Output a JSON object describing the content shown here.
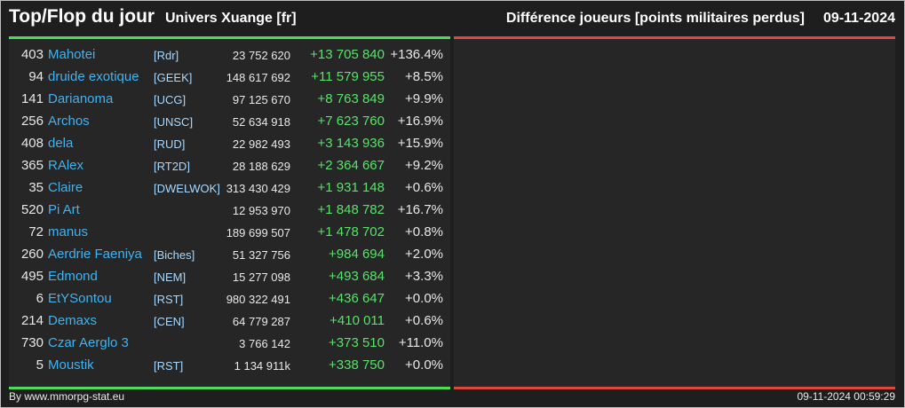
{
  "header": {
    "title": "Top/Flop du jour",
    "universe": "Univers Xuange [fr]",
    "metric": "Différence joueurs [points militaires perdus]",
    "date": "09-11-2024"
  },
  "colors": {
    "top_accent": "#4cdc5a",
    "flop_accent": "#e0463e",
    "player_name": "#3fb3f2",
    "gain": "#57e36a"
  },
  "top_rows": [
    {
      "rank": "403",
      "name": "Mahotei",
      "alliance": "[Rdr]",
      "points": "23 752 620",
      "diff": "+13 705 840",
      "pct": "+136.4%"
    },
    {
      "rank": "94",
      "name": "druide exotique",
      "alliance": "[GEEK]",
      "points": "148 617 692",
      "diff": "+11 579 955",
      "pct": "+8.5%"
    },
    {
      "rank": "141",
      "name": "Darianoma",
      "alliance": "[UCG]",
      "points": "97 125 670",
      "diff": "+8 763 849",
      "pct": "+9.9%"
    },
    {
      "rank": "256",
      "name": "Archos",
      "alliance": "[UNSC]",
      "points": "52 634 918",
      "diff": "+7 623 760",
      "pct": "+16.9%"
    },
    {
      "rank": "408",
      "name": "dela",
      "alliance": "[RUD]",
      "points": "22 982 493",
      "diff": "+3 143 936",
      "pct": "+15.9%"
    },
    {
      "rank": "365",
      "name": "RAlex",
      "alliance": "[RT2D]",
      "points": "28 188 629",
      "diff": "+2 364 667",
      "pct": "+9.2%"
    },
    {
      "rank": "35",
      "name": "Claire",
      "alliance": "[DWELWOK]",
      "points": "313 430 429",
      "diff": "+1 931 148",
      "pct": "+0.6%"
    },
    {
      "rank": "520",
      "name": "Pi Art",
      "alliance": "",
      "points": "12 953 970",
      "diff": "+1 848 782",
      "pct": "+16.7%"
    },
    {
      "rank": "72",
      "name": "manus",
      "alliance": "",
      "points": "189 699 507",
      "diff": "+1 478 702",
      "pct": "+0.8%"
    },
    {
      "rank": "260",
      "name": "Aerdrie Faeniya",
      "alliance": "[Biches]",
      "points": "51 327 756",
      "diff": "+984 694",
      "pct": "+2.0%"
    },
    {
      "rank": "495",
      "name": "Edmond",
      "alliance": "[NEM]",
      "points": "15 277 098",
      "diff": "+493 684",
      "pct": "+3.3%"
    },
    {
      "rank": "6",
      "name": "EtYSontou",
      "alliance": "[RST]",
      "points": "980 322 491",
      "diff": "+436 647",
      "pct": "+0.0%"
    },
    {
      "rank": "214",
      "name": "Demaxs",
      "alliance": "[CEN]",
      "points": "64 779 287",
      "diff": "+410 011",
      "pct": "+0.6%"
    },
    {
      "rank": "730",
      "name": "Czar Aerglo 3",
      "alliance": "",
      "points": "3 766 142",
      "diff": "+373 510",
      "pct": "+11.0%"
    },
    {
      "rank": "5",
      "name": "Moustik",
      "alliance": "[RST]",
      "points": "1 134 911k",
      "diff": "+338 750",
      "pct": "+0.0%"
    }
  ],
  "footer": {
    "credit": "By www.mmorpg-stat.eu",
    "timestamp": "09-11-2024 00:59:29"
  }
}
